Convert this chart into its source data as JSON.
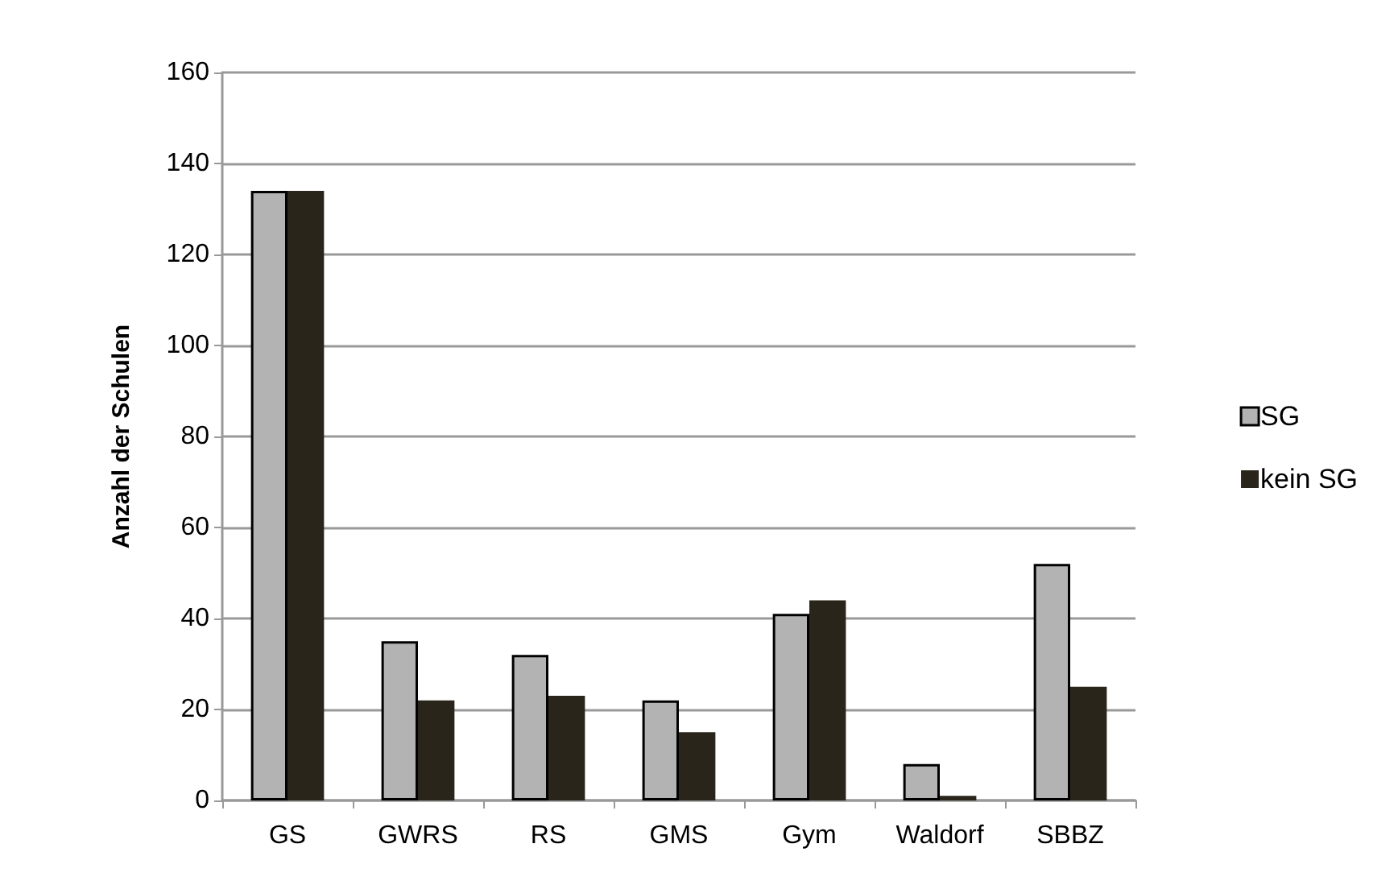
{
  "chart_data": {
    "type": "bar",
    "ylabel": "Anzahl der Schulen",
    "categories": [
      "GS",
      "GWRS",
      "RS",
      "GMS",
      "Gym",
      "Waldorf",
      "SBBZ"
    ],
    "series": [
      {
        "name": "SG",
        "color": "#b3b3b3",
        "values": [
          134,
          35,
          32,
          22,
          41,
          8,
          52
        ]
      },
      {
        "name": "kein SG",
        "color": "#29251a",
        "values": [
          134,
          22,
          23,
          15,
          44,
          1,
          25
        ]
      }
    ],
    "ylim": [
      0,
      160
    ],
    "yticks": [
      0,
      20,
      40,
      60,
      80,
      100,
      120,
      140,
      160
    ],
    "grid": "y",
    "legend": "right"
  }
}
